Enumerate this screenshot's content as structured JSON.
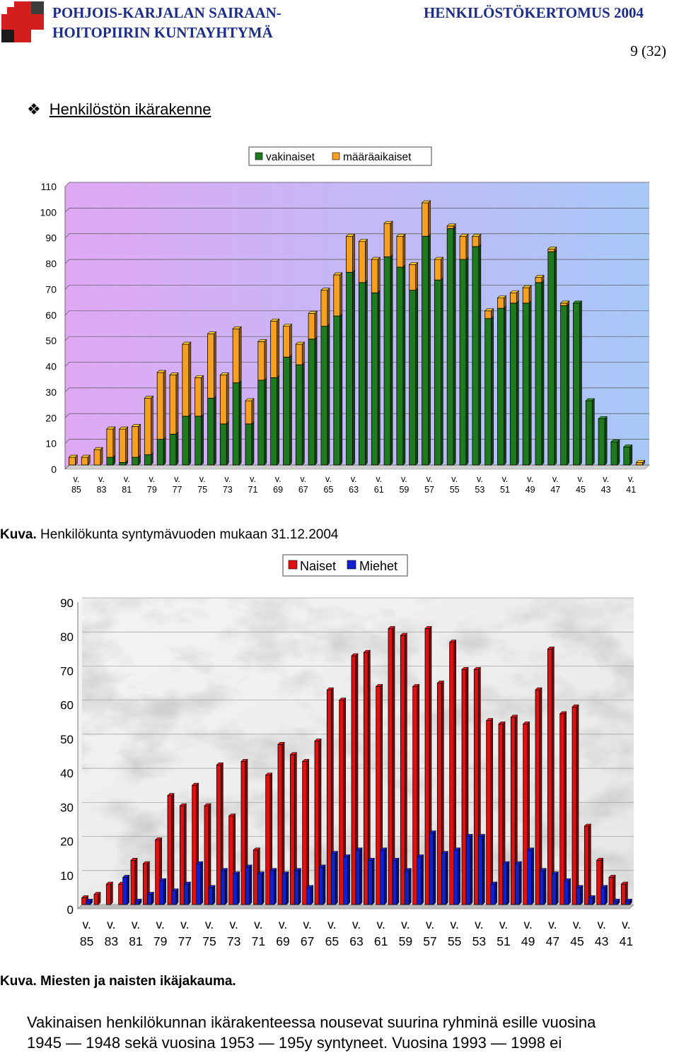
{
  "header": {
    "org_line1": "POHJOIS-KARJALAN SAIRAAN-",
    "org_line2": "HOITOPIIRIN KUNTAYHTYMÄ",
    "doc_title": "HENKILÖSTÖKERTOMUS 2004",
    "page": "9 (32)"
  },
  "section": {
    "title": "Henkilöstön ikärakenne"
  },
  "captions": {
    "chart1_prefix": "Kuva.",
    "chart1": "Henkilökunta syntymävuoden mukaan 31.12.2004",
    "chart2_prefix": "Kuva.",
    "chart2": "Miesten ja naisten ikäjakauma."
  },
  "paragraph": {
    "line1": "Vakinaisen henkilökunnan ikärakenteessa nousevat suurina ryhminä esille vuosina",
    "line2": "1945 — 1948 sekä vuosina 1953 — 195y syntyneet.  Vuosina 1993 — 1998 ei"
  },
  "colors": {
    "vakinaiset": "#1f7a1f",
    "maaraaikaiset": "#f5a020",
    "naiset": "#e01010",
    "miehet": "#1020d0",
    "header_text": "#1c2d8a",
    "logo_red": "#d41e1e"
  },
  "icons": {
    "logo": "red-cross-logo",
    "bullet": "diamond-bullet"
  },
  "chart_data": [
    {
      "type": "bar",
      "stacked": true,
      "legend": "top-center",
      "grid": true,
      "ylim": [
        0,
        110
      ],
      "yticks": [
        0,
        10,
        20,
        30,
        40,
        50,
        60,
        70,
        80,
        90,
        100,
        110
      ],
      "categories": [
        "v. 85",
        "",
        "v. 83",
        "",
        "v. 81",
        "",
        "v. 79",
        "",
        "v. 77",
        "",
        "v. 75",
        "",
        "v. 73",
        "",
        "v. 71",
        "",
        "v. 69",
        "",
        "v. 67",
        "",
        "v. 65",
        "",
        "v. 63",
        "",
        "v. 61",
        "",
        "v. 59",
        "",
        "v. 57",
        "",
        "v. 55",
        "",
        "v. 53",
        "",
        "v. 51",
        "",
        "v. 49",
        "",
        "v. 47",
        "",
        "v. 45",
        "",
        "v. 43",
        "",
        "v. 41",
        ""
      ],
      "tick_labels": [
        "v. 85",
        "v. 83",
        "v. 81",
        "v. 79",
        "v. 77",
        "v. 75",
        "v. 73",
        "v. 71",
        "v. 69",
        "v. 67",
        "v. 65",
        "v. 63",
        "v. 61",
        "v. 59",
        "v. 57",
        "v. 55",
        "v. 53",
        "v. 51",
        "v. 49",
        "v. 47",
        "v. 45",
        "v. 43",
        "v. 41"
      ],
      "series": [
        {
          "name": "vakinaiset",
          "values": [
            0,
            0,
            0,
            3,
            1,
            3,
            4,
            10,
            12,
            19,
            19,
            26,
            16,
            32,
            16,
            33,
            34,
            42,
            39,
            49,
            54,
            58,
            75,
            71,
            67,
            81,
            77,
            68,
            89,
            72,
            92,
            80,
            85,
            57,
            61,
            63,
            63,
            71,
            83,
            62,
            63,
            25,
            18,
            9,
            7,
            0
          ]
        },
        {
          "name": "määräaikaiset",
          "values": [
            3,
            3,
            6,
            11,
            13,
            12,
            22,
            26,
            23,
            28,
            15,
            25,
            19,
            21,
            9,
            15,
            22,
            12,
            8,
            10,
            14,
            16,
            14,
            16,
            13,
            13,
            12,
            10,
            13,
            8,
            1,
            9,
            4,
            3,
            4,
            4,
            6,
            2,
            1,
            1,
            0,
            0,
            0,
            0,
            0,
            1
          ]
        }
      ]
    },
    {
      "type": "bar",
      "stacked": false,
      "legend": "top-center",
      "grid": true,
      "ylim": [
        0,
        90
      ],
      "yticks": [
        0,
        10,
        20,
        30,
        40,
        50,
        60,
        70,
        80,
        90
      ],
      "categories": [
        "v. 85",
        "",
        "v. 83",
        "",
        "v. 81",
        "",
        "v. 79",
        "",
        "v. 77",
        "",
        "v. 75",
        "",
        "v. 73",
        "",
        "v. 71",
        "",
        "v. 69",
        "",
        "v. 67",
        "",
        "v. 65",
        "",
        "v. 63",
        "",
        "v. 61",
        "",
        "v. 59",
        "",
        "v. 57",
        "",
        "v. 55",
        "",
        "v. 53",
        "",
        "v. 51",
        "",
        "v. 49",
        "",
        "v. 47",
        "",
        "v. 45",
        "",
        "v. 43",
        "",
        "v. 41"
      ],
      "tick_labels": [
        "v. 85",
        "v. 83",
        "v. 81",
        "v. 79",
        "v. 77",
        "v. 75",
        "v. 73",
        "v. 71",
        "v. 69",
        "v. 67",
        "v. 65",
        "v. 63",
        "v. 61",
        "v. 59",
        "v. 57",
        "v. 55",
        "v. 53",
        "v. 51",
        "v. 49",
        "v. 47",
        "v. 45",
        "v. 43",
        "v. 41"
      ],
      "series": [
        {
          "name": "Naiset",
          "values": [
            2,
            3,
            6,
            6,
            13,
            12,
            19,
            32,
            29,
            35,
            29,
            41,
            26,
            42,
            16,
            38,
            47,
            44,
            42,
            48,
            63,
            60,
            73,
            74,
            64,
            81,
            79,
            64,
            81,
            65,
            77,
            69,
            69,
            54,
            53,
            55,
            53,
            63,
            75,
            56,
            58,
            23,
            13,
            8,
            6
          ]
        },
        {
          "name": "Miehet",
          "values": [
            1,
            0,
            0,
            8,
            1,
            3,
            7,
            4,
            6,
            12,
            5,
            10,
            9,
            11,
            9,
            10,
            9,
            10,
            5,
            11,
            15,
            14,
            16,
            13,
            16,
            13,
            10,
            14,
            21,
            15,
            16,
            20,
            20,
            6,
            12,
            12,
            16,
            10,
            9,
            7,
            5,
            2,
            5,
            1,
            1
          ]
        }
      ]
    }
  ]
}
